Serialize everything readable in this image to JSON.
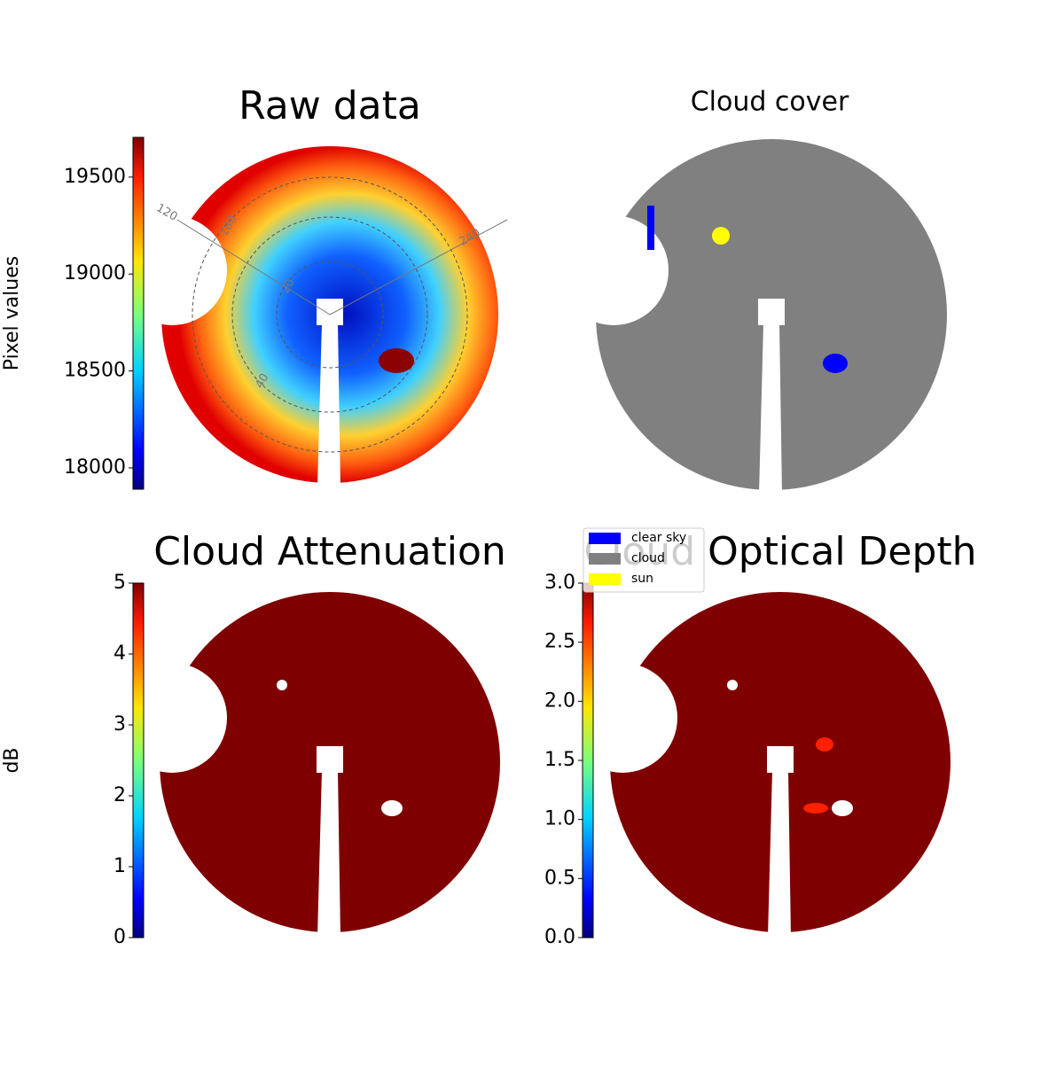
{
  "chart_data": [
    {
      "type": "image",
      "title": "Raw data",
      "colorbar_label": "Pixel values",
      "colormap": "jet",
      "ylim": [
        17890,
        19705
      ],
      "yticks": [
        18000,
        18500,
        19000,
        19500
      ],
      "polar_labels": [
        "120",
        "180",
        "240",
        "20",
        "40"
      ]
    },
    {
      "type": "image",
      "title": "Cloud cover",
      "legend": [
        {
          "name": "clear sky",
          "color": "#0000ff"
        },
        {
          "name": "cloud",
          "color": "#808080"
        },
        {
          "name": "sun",
          "color": "#ffff00"
        }
      ]
    },
    {
      "type": "image",
      "title": "Cloud Attenuation",
      "colorbar_label": "dB",
      "colormap": "jet",
      "ylim": [
        0,
        5
      ],
      "yticks": [
        0,
        1,
        2,
        3,
        4,
        5
      ]
    },
    {
      "type": "image",
      "title": "Cloud Optical Depth",
      "colormap": "jet",
      "ylim": [
        0,
        3
      ],
      "yticks": [
        {
          "value": 0,
          "label": "0.0"
        },
        0.5,
        {
          "value": 1,
          "label": "1.0"
        },
        1.5,
        {
          "value": 2,
          "label": "2.0"
        },
        2.5,
        {
          "value": 3,
          "label": "3.0"
        }
      ]
    }
  ]
}
